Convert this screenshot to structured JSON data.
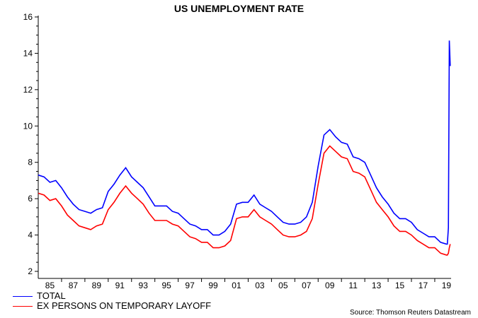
{
  "chart_data": {
    "type": "line",
    "title": "US UNEMPLOYMENT RATE",
    "xlabel": "",
    "ylabel": "",
    "ylim": [
      1.6,
      16
    ],
    "xlim": [
      1985.0,
      2020.4
    ],
    "yticks": [
      "2",
      "4",
      "6",
      "8",
      "10",
      "12",
      "14",
      "16"
    ],
    "xtick_labels": [
      "85",
      "87",
      "89",
      "91",
      "93",
      "95",
      "97",
      "99",
      "01",
      "03",
      "05",
      "07",
      "09",
      "11",
      "13",
      "15",
      "17",
      "19"
    ],
    "grid": false,
    "legend_position": "bottom-left",
    "x": [
      1985.0,
      1985.5,
      1986.0,
      1986.5,
      1987.0,
      1987.5,
      1988.0,
      1988.5,
      1989.0,
      1989.5,
      1990.0,
      1990.5,
      1991.0,
      1991.5,
      1992.0,
      1992.5,
      1993.0,
      1993.5,
      1994.0,
      1994.5,
      1995.0,
      1995.5,
      1996.0,
      1996.5,
      1997.0,
      1997.5,
      1998.0,
      1998.5,
      1999.0,
      1999.5,
      2000.0,
      2000.5,
      2001.0,
      2001.5,
      2002.0,
      2002.5,
      2003.0,
      2003.5,
      2004.0,
      2004.5,
      2005.0,
      2005.5,
      2006.0,
      2006.5,
      2007.0,
      2007.5,
      2008.0,
      2008.5,
      2009.0,
      2009.5,
      2010.0,
      2010.5,
      2011.0,
      2011.5,
      2012.0,
      2012.5,
      2013.0,
      2013.5,
      2014.0,
      2014.5,
      2015.0,
      2015.5,
      2016.0,
      2016.5,
      2017.0,
      2017.5,
      2018.0,
      2018.5,
      2019.0,
      2019.5,
      2020.0,
      2020.08,
      2020.17,
      2020.25,
      2020.33
    ],
    "series": [
      {
        "name": "TOTAL",
        "color": "#0000ff",
        "values": [
          7.3,
          7.2,
          6.9,
          7.0,
          6.6,
          6.1,
          5.7,
          5.4,
          5.3,
          5.2,
          5.4,
          5.5,
          6.4,
          6.8,
          7.3,
          7.7,
          7.2,
          6.9,
          6.6,
          6.1,
          5.6,
          5.6,
          5.6,
          5.3,
          5.2,
          4.9,
          4.6,
          4.5,
          4.3,
          4.3,
          4.0,
          4.0,
          4.2,
          4.6,
          5.7,
          5.8,
          5.8,
          6.2,
          5.7,
          5.5,
          5.3,
          5.0,
          4.7,
          4.6,
          4.6,
          4.7,
          5.0,
          5.8,
          7.8,
          9.5,
          9.8,
          9.4,
          9.1,
          9.0,
          8.3,
          8.2,
          8.0,
          7.3,
          6.6,
          6.1,
          5.7,
          5.2,
          4.9,
          4.9,
          4.7,
          4.3,
          4.1,
          3.9,
          3.9,
          3.6,
          3.5,
          3.5,
          4.4,
          14.7,
          13.3
        ]
      },
      {
        "name": "EX PERSONS ON TEMPORARY LAYOFF",
        "color": "#ff0000",
        "values": [
          6.3,
          6.2,
          5.9,
          6.0,
          5.6,
          5.1,
          4.8,
          4.5,
          4.4,
          4.3,
          4.5,
          4.6,
          5.4,
          5.8,
          6.3,
          6.7,
          6.3,
          6.0,
          5.7,
          5.2,
          4.8,
          4.8,
          4.8,
          4.6,
          4.5,
          4.2,
          3.9,
          3.8,
          3.6,
          3.6,
          3.3,
          3.3,
          3.4,
          3.7,
          4.9,
          5.0,
          5.0,
          5.4,
          5.0,
          4.8,
          4.6,
          4.3,
          4.0,
          3.9,
          3.9,
          4.0,
          4.2,
          4.9,
          6.8,
          8.5,
          8.9,
          8.6,
          8.3,
          8.2,
          7.5,
          7.4,
          7.2,
          6.5,
          5.8,
          5.4,
          5.0,
          4.5,
          4.2,
          4.2,
          4.0,
          3.7,
          3.5,
          3.3,
          3.3,
          3.0,
          2.9,
          2.9,
          3.0,
          3.3,
          3.5
        ]
      }
    ],
    "source": "Source: Thomson Reuters Datastream"
  }
}
